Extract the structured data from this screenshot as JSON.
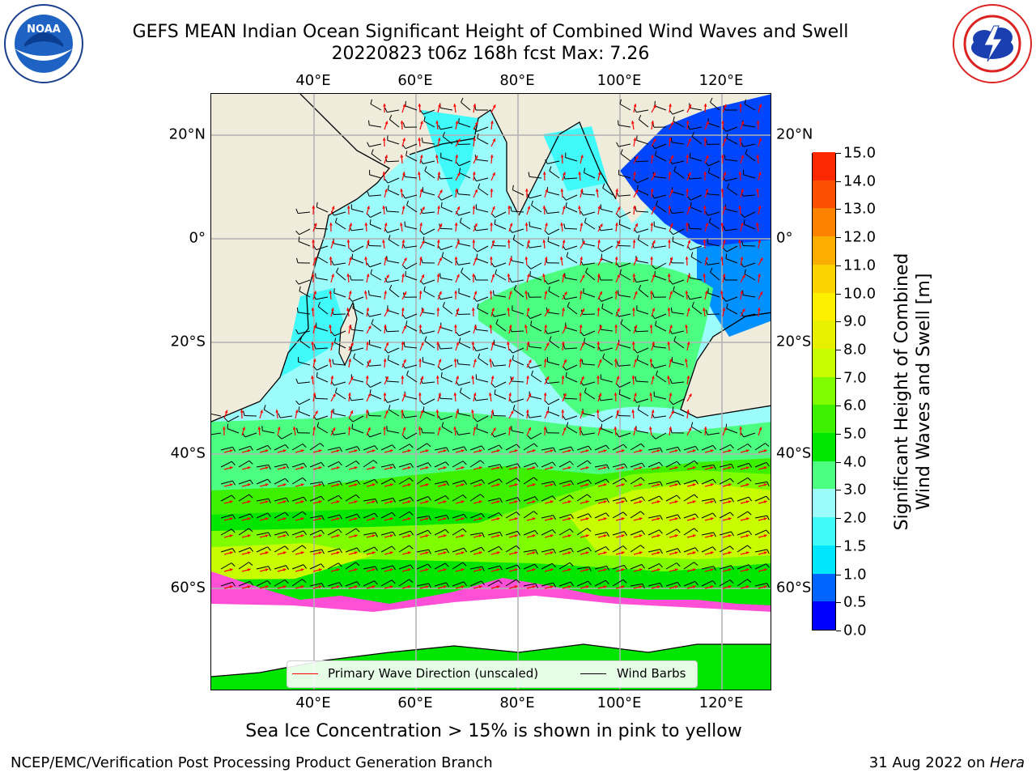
{
  "header": {
    "title_line1": "GEFS MEAN Indian Ocean Significant Height of Combined Wind Waves and Swell",
    "title_line2": "20220823 t06z 168h fcst   Max: 7.26"
  },
  "logos": {
    "left": {
      "icon": "noaa-logo",
      "text": "NOAA",
      "ring_text": "NATIONAL OCEANIC AND ATMOSPHERIC ADMINISTRATION · U.S. DEPARTMENT OF COMMERCE"
    },
    "right": {
      "icon": "nws-logo",
      "ring_text": "NATIONAL WEATHER SERVICE"
    }
  },
  "map": {
    "lon_ticks_top": [
      "40°E",
      "60°E",
      "80°E",
      "100°E",
      "120°E"
    ],
    "lon_ticks_bottom": [
      "40°E",
      "60°E",
      "80°E",
      "100°E",
      "120°E"
    ],
    "lat_ticks_left": [
      "20°N",
      "0°",
      "20°S",
      "40°S",
      "60°S"
    ],
    "lat_ticks_right": [
      "20°N",
      "0°",
      "20°S",
      "40°S",
      "60°S"
    ],
    "land_color": "#efecdc",
    "wave_arrow_color": "#ff0000",
    "wind_barb_color": "#000000",
    "legend": {
      "wave": "Primary Wave Direction (unscaled)",
      "wind": "Wind Barbs"
    }
  },
  "colorbar": {
    "label_line1": "Significant Height of Combined",
    "label_line2": "Wind Waves and Swell [m]",
    "ticks": [
      "15.0",
      "14.0",
      "13.0",
      "12.0",
      "11.0",
      "10.0",
      "9.0",
      "8.0",
      "7.0",
      "6.0",
      "5.0",
      "4.0",
      "3.0",
      "2.0",
      "1.5",
      "1.0",
      "0.5",
      "0.0"
    ],
    "colors": [
      "#0000ff",
      "#0064ff",
      "#00e6ff",
      "#40fafa",
      "#9cfcfc",
      "#4dff80",
      "#00e600",
      "#3cf000",
      "#80fc00",
      "#c8fc00",
      "#e6f000",
      "#fcf000",
      "#fcd200",
      "#fcae00",
      "#fc8200",
      "#fc5000",
      "#fc2800",
      "#fc0000"
    ]
  },
  "subtitle": "Sea Ice Concentration > 15% is shown in pink to yellow",
  "footer": {
    "left": "NCEP/EMC/Verification Post Processing Product Generation Branch",
    "right_date": "31 Aug 2022 on ",
    "right_host": "Hera"
  }
}
